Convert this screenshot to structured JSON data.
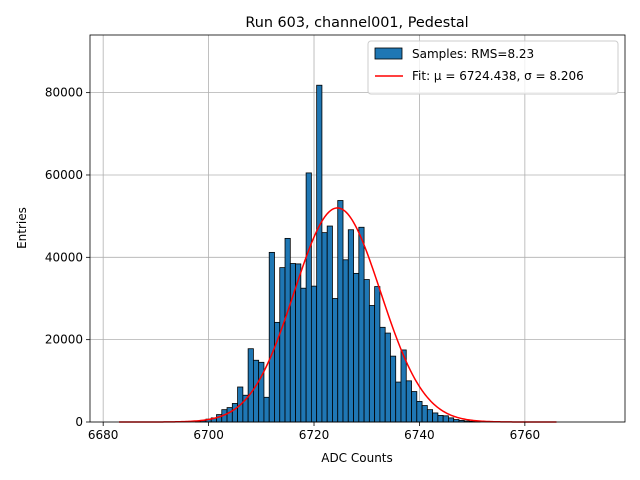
{
  "chart_data": {
    "type": "bar",
    "title": "Run 603, channel001, Pedestal",
    "xlabel": "ADC Counts",
    "ylabel": "Entries",
    "xlim": [
      6677.5,
      6779
    ],
    "ylim": [
      0,
      94000
    ],
    "xticks": [
      6680,
      6700,
      6720,
      6740,
      6760
    ],
    "yticks": [
      0,
      20000,
      40000,
      60000,
      80000
    ],
    "grid": true,
    "legend_position": "top-right",
    "colors": {
      "bar_fill": "#1f77b4",
      "bar_edge": "#000000",
      "fit_line": "#ff0000",
      "grid": "#b0b0b0"
    },
    "series": [
      {
        "name": "Samples: RMS=8.23",
        "kind": "histogram",
        "bin_width": 1,
        "bin_centers": [
          6698,
          6699,
          6700,
          6701,
          6702,
          6703,
          6704,
          6705,
          6706,
          6707,
          6708,
          6709,
          6710,
          6711,
          6712,
          6713,
          6714,
          6715,
          6716,
          6717,
          6718,
          6719,
          6720,
          6721,
          6722,
          6723,
          6724,
          6725,
          6726,
          6727,
          6728,
          6729,
          6730,
          6731,
          6732,
          6733,
          6734,
          6735,
          6736,
          6737,
          6738,
          6739,
          6740,
          6741,
          6742,
          6743,
          6744,
          6745,
          6746,
          6747,
          6748,
          6749,
          6750,
          6751
        ],
        "counts": [
          150,
          300,
          700,
          1000,
          1800,
          3000,
          3500,
          4500,
          8500,
          6500,
          17800,
          15000,
          14500,
          6000,
          41200,
          24200,
          37500,
          44600,
          38500,
          38400,
          32500,
          60500,
          33000,
          81800,
          46000,
          47600,
          30000,
          53800,
          39400,
          46700,
          36100,
          47300,
          34600,
          28300,
          32900,
          23000,
          21600,
          16000,
          9700,
          17500,
          10000,
          7400,
          5000,
          4000,
          3000,
          2200,
          1600,
          1500,
          1000,
          600,
          400,
          250,
          150,
          100
        ]
      },
      {
        "name": "Fit: μ = 6724.438, σ = 8.206",
        "kind": "gaussian_fit",
        "mu": 6724.438,
        "sigma": 8.206,
        "amplitude": 52000,
        "x_range": [
          6683,
          6766
        ]
      }
    ]
  }
}
